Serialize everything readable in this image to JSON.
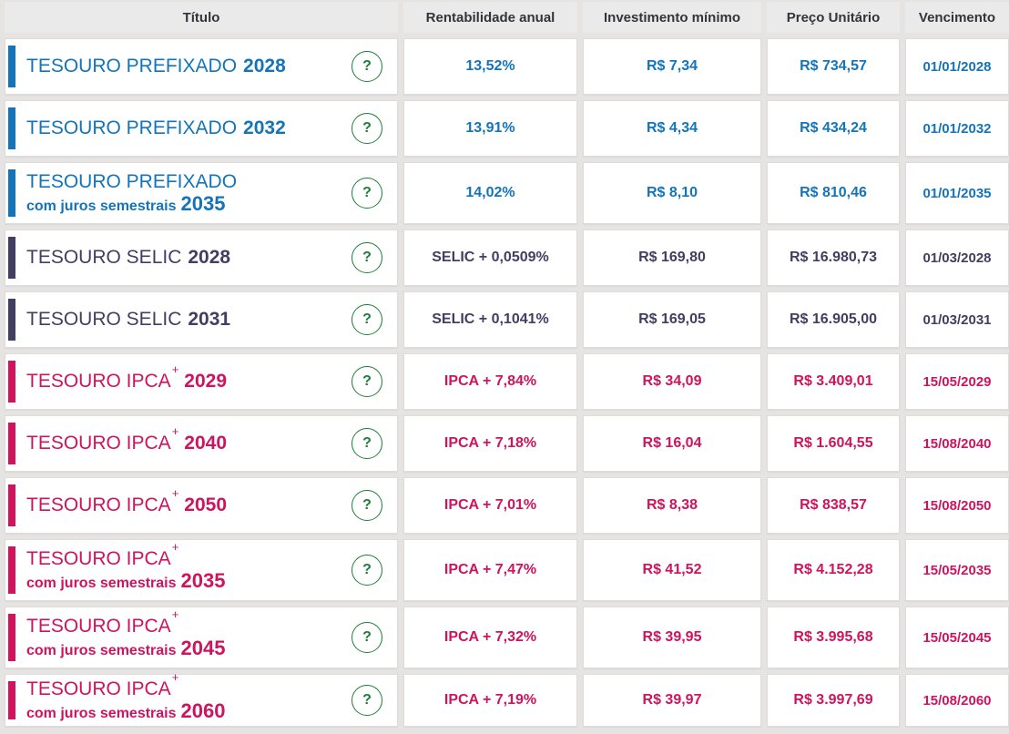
{
  "table": {
    "columns": [
      "Título",
      "Rentabilidade anual",
      "Investimento mínimo",
      "Preço Unitário",
      "Vencimento"
    ],
    "help_glyph": "?",
    "help_icon_color": "#1e7d36",
    "themes": {
      "prefixado": "#1374ba",
      "selic": "#423e62",
      "ipca": "#cf135e"
    },
    "rows": [
      {
        "name": "TESOURO PREFIXADO",
        "sup": "",
        "subtitle": "",
        "year": "2028",
        "theme": "prefixado",
        "rentabilidade": "13,52%",
        "investimento": "R$ 7,34",
        "preco": "R$ 734,57",
        "vencimento": "01/01/2028"
      },
      {
        "name": "TESOURO PREFIXADO",
        "sup": "",
        "subtitle": "",
        "year": "2032",
        "theme": "prefixado",
        "rentabilidade": "13,91%",
        "investimento": "R$ 4,34",
        "preco": "R$ 434,24",
        "vencimento": "01/01/2032"
      },
      {
        "name": "TESOURO PREFIXADO",
        "sup": "",
        "subtitle": "com juros semestrais",
        "year": "2035",
        "theme": "prefixado",
        "rentabilidade": "14,02%",
        "investimento": "R$ 8,10",
        "preco": "R$ 810,46",
        "vencimento": "01/01/2035"
      },
      {
        "name": "TESOURO SELIC",
        "sup": "",
        "subtitle": "",
        "year": "2028",
        "theme": "selic",
        "rentabilidade": "SELIC + 0,0509%",
        "investimento": "R$ 169,80",
        "preco": "R$ 16.980,73",
        "vencimento": "01/03/2028"
      },
      {
        "name": "TESOURO SELIC",
        "sup": "",
        "subtitle": "",
        "year": "2031",
        "theme": "selic",
        "rentabilidade": "SELIC + 0,1041%",
        "investimento": "R$ 169,05",
        "preco": "R$ 16.905,00",
        "vencimento": "01/03/2031"
      },
      {
        "name": "TESOURO IPCA",
        "sup": "+",
        "subtitle": "",
        "year": "2029",
        "theme": "ipca",
        "rentabilidade": "IPCA + 7,84%",
        "investimento": "R$ 34,09",
        "preco": "R$ 3.409,01",
        "vencimento": "15/05/2029"
      },
      {
        "name": "TESOURO IPCA",
        "sup": "+",
        "subtitle": "",
        "year": "2040",
        "theme": "ipca",
        "rentabilidade": "IPCA + 7,18%",
        "investimento": "R$ 16,04",
        "preco": "R$ 1.604,55",
        "vencimento": "15/08/2040"
      },
      {
        "name": "TESOURO IPCA",
        "sup": "+",
        "subtitle": "",
        "year": "2050",
        "theme": "ipca",
        "rentabilidade": "IPCA + 7,01%",
        "investimento": "R$ 8,38",
        "preco": "R$ 838,57",
        "vencimento": "15/08/2050"
      },
      {
        "name": "TESOURO IPCA",
        "sup": "+",
        "subtitle": "com juros semestrais",
        "year": "2035",
        "theme": "ipca",
        "rentabilidade": "IPCA + 7,47%",
        "investimento": "R$ 41,52",
        "preco": "R$ 4.152,28",
        "vencimento": "15/05/2035"
      },
      {
        "name": "TESOURO IPCA",
        "sup": "+",
        "subtitle": "com juros semestrais",
        "year": "2045",
        "theme": "ipca",
        "rentabilidade": "IPCA + 7,32%",
        "investimento": "R$ 39,95",
        "preco": "R$ 3.995,68",
        "vencimento": "15/05/2045"
      },
      {
        "name": "TESOURO IPCA",
        "sup": "+",
        "subtitle": "com juros semestrais",
        "year": "2060",
        "theme": "ipca",
        "rentabilidade": "IPCA + 7,19%",
        "investimento": "R$ 39,97",
        "preco": "R$ 3.997,69",
        "vencimento": "15/08/2060"
      }
    ]
  }
}
